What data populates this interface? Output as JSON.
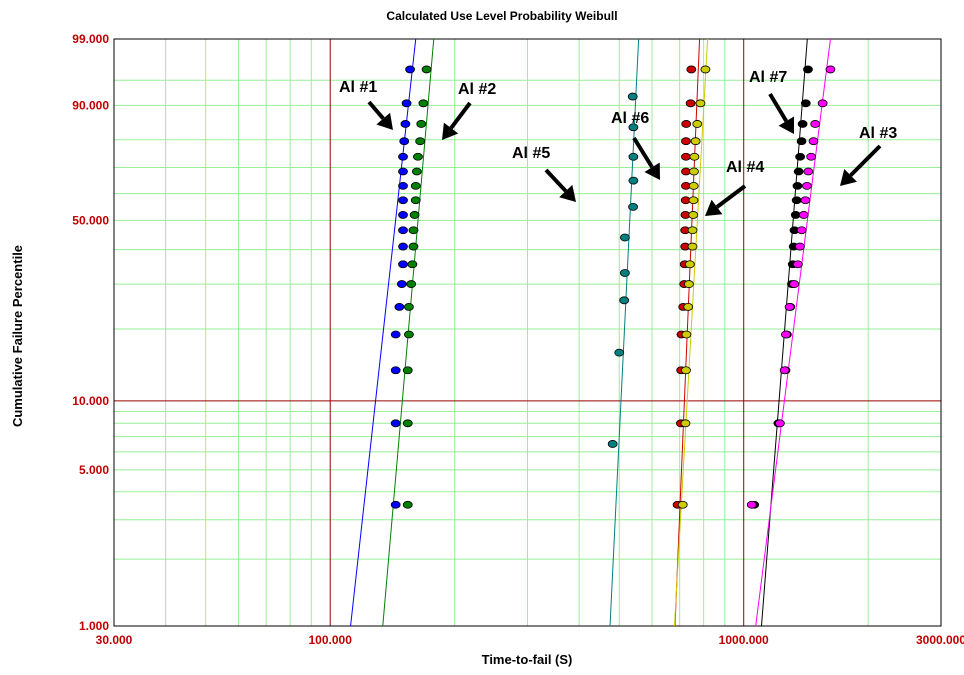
{
  "chart_data": {
    "type": "scatter",
    "title": "Calculated Use Level Probability Weibull",
    "xlabel": "Time-to-fail (S)",
    "ylabel": "Cumulative Failure Percentile",
    "x_scale": "log",
    "y_scale": "weibull",
    "xlim": [
      30,
      3000
    ],
    "ylim": [
      1,
      99
    ],
    "x_tick_labels": [
      {
        "value": 30,
        "label": "30.000"
      },
      {
        "value": 100,
        "label": "100.000"
      },
      {
        "value": 1000,
        "label": "1000.000"
      },
      {
        "value": 3000,
        "label": "3000.000"
      }
    ],
    "y_tick_labels": [
      {
        "value": 1,
        "label": "1.000"
      },
      {
        "value": 5,
        "label": "5.000"
      },
      {
        "value": 10,
        "label": "10.000"
      },
      {
        "value": 50,
        "label": "50.000"
      },
      {
        "value": 90,
        "label": "90.000"
      },
      {
        "value": 99,
        "label": "99.000"
      }
    ],
    "grid": true,
    "legend": "none",
    "colors": {
      "grid_minor": "#99ee99",
      "grid_major": "#990000",
      "axis_label": "#c00000",
      "arrow": "#000000"
    },
    "series": [
      {
        "name": "Al #1",
        "color": "#0000ff",
        "fit_line": [
          [
            112,
            1
          ],
          [
            161,
            99
          ]
        ],
        "points": [
          [
            144,
            3.5
          ],
          [
            144,
            8
          ],
          [
            144,
            13.5
          ],
          [
            144,
            19
          ],
          [
            147,
            24.5
          ],
          [
            149,
            30
          ],
          [
            150,
            35.5
          ],
          [
            150,
            41
          ],
          [
            150,
            46.5
          ],
          [
            150,
            52
          ],
          [
            150,
            57.5
          ],
          [
            150,
            63
          ],
          [
            150,
            68.5
          ],
          [
            150,
            74
          ],
          [
            151,
            79.5
          ],
          [
            152,
            85
          ],
          [
            153,
            90.5
          ],
          [
            156,
            96.5
          ]
        ]
      },
      {
        "name": "Al #2",
        "color": "#008000",
        "fit_line": [
          [
            134,
            1
          ],
          [
            178,
            99
          ]
        ],
        "points": [
          [
            154,
            3.5
          ],
          [
            154,
            8
          ],
          [
            154,
            13.5
          ],
          [
            155,
            19
          ],
          [
            155,
            24.5
          ],
          [
            157,
            30
          ],
          [
            158,
            35.5
          ],
          [
            159,
            41
          ],
          [
            159,
            46.5
          ],
          [
            160,
            52
          ],
          [
            161,
            57.5
          ],
          [
            161,
            63
          ],
          [
            162,
            68.5
          ],
          [
            163,
            74
          ],
          [
            165,
            79.5
          ],
          [
            166,
            85
          ],
          [
            168,
            90.5
          ],
          [
            171,
            96.5
          ]
        ]
      },
      {
        "name": "Al #5",
        "color": "#008080",
        "fit_line": [
          [
            475,
            1
          ],
          [
            557,
            99
          ]
        ],
        "points": [
          [
            482,
            6.5
          ],
          [
            500,
            16
          ],
          [
            514,
            26
          ],
          [
            516,
            33
          ],
          [
            516,
            44
          ],
          [
            540,
            55
          ],
          [
            541,
            65
          ],
          [
            541,
            74
          ],
          [
            541,
            84
          ],
          [
            539,
            92
          ]
        ]
      },
      {
        "name": "Al #6",
        "color": "#cc0000",
        "fit_line": [
          [
            682,
            1
          ],
          [
            782,
            99
          ]
        ],
        "points": [
          [
            692,
            3.5
          ],
          [
            705,
            8
          ],
          [
            706,
            13.5
          ],
          [
            707,
            19
          ],
          [
            714,
            24.5
          ],
          [
            718,
            30
          ],
          [
            720,
            35.5
          ],
          [
            722,
            41
          ],
          [
            722,
            46.5
          ],
          [
            723,
            52
          ],
          [
            724,
            57.5
          ],
          [
            725,
            63
          ],
          [
            725,
            68.5
          ],
          [
            725,
            74
          ],
          [
            725,
            79.5
          ],
          [
            726,
            85
          ],
          [
            744,
            90.5
          ],
          [
            747,
            96.5
          ]
        ]
      },
      {
        "name": "Al #4",
        "color": "#cccc00",
        "fit_line": [
          [
            680,
            1
          ],
          [
            818,
            99
          ]
        ],
        "points": [
          [
            712,
            3.5
          ],
          [
            723,
            8
          ],
          [
            725,
            13.5
          ],
          [
            727,
            19
          ],
          [
            734,
            24.5
          ],
          [
            737,
            30
          ],
          [
            741,
            35.5
          ],
          [
            752,
            41
          ],
          [
            752,
            46.5
          ],
          [
            755,
            52
          ],
          [
            756,
            57.5
          ],
          [
            757,
            63
          ],
          [
            758,
            68.5
          ],
          [
            760,
            74
          ],
          [
            765,
            79.5
          ],
          [
            772,
            85
          ],
          [
            786,
            90.5
          ],
          [
            808,
            96.5
          ]
        ]
      },
      {
        "name": "Al #7",
        "color": "#000000",
        "fit_line": [
          [
            1104,
            1
          ],
          [
            1425,
            99
          ]
        ],
        "points": [
          [
            1060,
            3.5
          ],
          [
            1213,
            8
          ],
          [
            1262,
            13.5
          ],
          [
            1272,
            19
          ],
          [
            1296,
            24.5
          ],
          [
            1308,
            30
          ],
          [
            1314,
            35.5
          ],
          [
            1321,
            41
          ],
          [
            1327,
            46.5
          ],
          [
            1336,
            52
          ],
          [
            1343,
            57.5
          ],
          [
            1349,
            63
          ],
          [
            1358,
            68.5
          ],
          [
            1369,
            74
          ],
          [
            1380,
            79.5
          ],
          [
            1388,
            85
          ],
          [
            1413,
            90.5
          ],
          [
            1430,
            96.5
          ]
        ]
      },
      {
        "name": "Al #3",
        "color": "#ff00ff",
        "fit_line": [
          [
            1069,
            1
          ],
          [
            1621,
            99
          ]
        ],
        "points": [
          [
            1046,
            3.5
          ],
          [
            1223,
            8
          ],
          [
            1256,
            13.5
          ],
          [
            1265,
            19
          ],
          [
            1291,
            24.5
          ],
          [
            1325,
            30
          ],
          [
            1352,
            35.5
          ],
          [
            1368,
            41
          ],
          [
            1381,
            46.5
          ],
          [
            1397,
            52
          ],
          [
            1410,
            57.5
          ],
          [
            1422,
            63
          ],
          [
            1433,
            68.5
          ],
          [
            1456,
            74
          ],
          [
            1475,
            79.5
          ],
          [
            1489,
            85
          ],
          [
            1552,
            90.5
          ],
          [
            1621,
            96.5
          ]
        ]
      }
    ],
    "annotations": [
      {
        "text": "Al #1"
      },
      {
        "text": "Al #2"
      },
      {
        "text": "Al #5"
      },
      {
        "text": "Al #6"
      },
      {
        "text": "Al #4"
      },
      {
        "text": "Al #7"
      },
      {
        "text": "Al #3"
      }
    ]
  }
}
